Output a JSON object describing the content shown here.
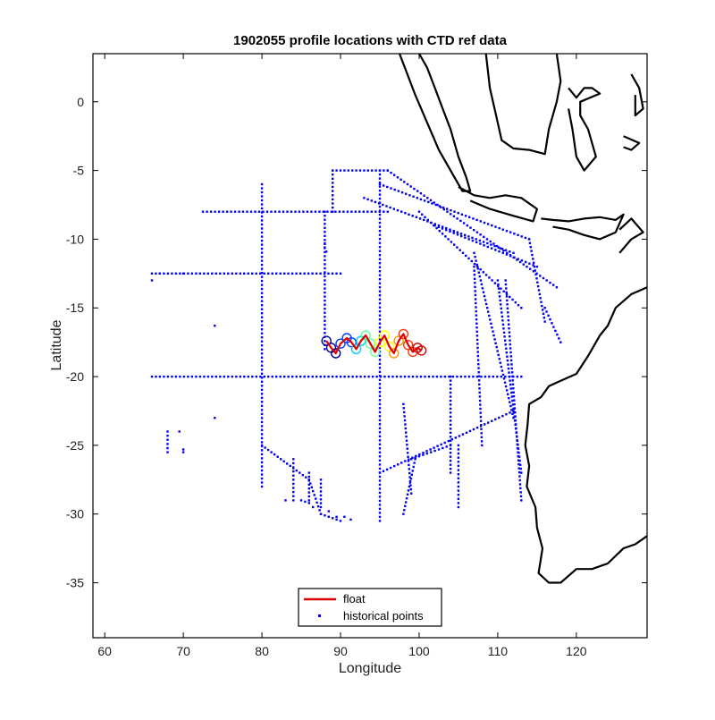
{
  "chart_data": {
    "type": "scatter",
    "title": "1902055 profile locations with CTD ref data",
    "xlabel": "Longitude",
    "ylabel": "Latitude",
    "xlim": [
      58.5,
      129
    ],
    "ylim": [
      -39,
      3.5
    ],
    "x_ticks": [
      60,
      70,
      80,
      90,
      100,
      110,
      120
    ],
    "y_ticks": [
      0,
      -5,
      -10,
      -15,
      -20,
      -25,
      -30,
      -35
    ],
    "grid": false,
    "legend_position": "bottom-center",
    "legend": [
      {
        "label": "float",
        "color": "#dd0000",
        "marker": "line"
      },
      {
        "label": "historical points",
        "color": "#0000ee",
        "marker": "dot"
      }
    ],
    "series": [
      {
        "name": "float",
        "color": "#dd0000",
        "x": [
          88.2,
          88.8,
          89.4,
          90.0,
          90.8,
          91.4,
          92.0,
          92.6,
          93.2,
          93.8,
          94.4,
          95.0,
          95.6,
          96.2,
          96.8,
          97.4,
          98.0,
          98.6,
          99.2,
          99.8,
          100.3
        ],
        "y": [
          -17.4,
          -17.9,
          -18.3,
          -17.6,
          -17.2,
          -17.5,
          -18.0,
          -17.4,
          -17.0,
          -17.6,
          -18.2,
          -17.5,
          -17.0,
          -17.8,
          -18.3,
          -17.4,
          -16.9,
          -17.7,
          -18.2,
          -17.9,
          -18.1
        ]
      },
      {
        "name": "historical points",
        "color": "#0000ee",
        "segments": [
          {
            "from": [
              66,
              -20
            ],
            "to": [
              113,
              -20
            ]
          },
          {
            "from": [
              72.5,
              -8
            ],
            "to": [
              96,
              -8
            ]
          },
          {
            "from": [
              66,
              -12.5
            ],
            "to": [
              90,
              -12.5
            ]
          },
          {
            "from": [
              80,
              -6
            ],
            "to": [
              80,
              -28
            ]
          },
          {
            "from": [
              95,
              -5
            ],
            "to": [
              95,
              -30.5
            ]
          },
          {
            "from": [
              88,
              -8
            ],
            "to": [
              88,
              -18
            ]
          },
          {
            "from": [
              89,
              -5
            ],
            "to": [
              96,
              -5
            ]
          },
          {
            "from": [
              89,
              -5
            ],
            "to": [
              89,
              -8
            ]
          },
          {
            "from": [
              96,
              -5
            ],
            "to": [
              117.5,
              -13.5
            ]
          },
          {
            "from": [
              95,
              -6
            ],
            "to": [
              114,
              -10
            ]
          },
          {
            "from": [
              93,
              -7
            ],
            "to": [
              112,
              -11
            ]
          },
          {
            "from": [
              102,
              -9
            ],
            "to": [
              115,
              -12
            ]
          },
          {
            "from": [
              100,
              -8
            ],
            "to": [
              113,
              -15
            ]
          },
          {
            "from": [
              107,
              -11
            ],
            "to": [
              112,
              -23
            ]
          },
          {
            "from": [
              107,
              -12
            ],
            "to": [
              108,
              -25
            ]
          },
          {
            "from": [
              110,
              -13
            ],
            "to": [
              113,
              -27
            ]
          },
          {
            "from": [
              111,
              -13
            ],
            "to": [
              113,
              -29
            ]
          },
          {
            "from": [
              114,
              -10
            ],
            "to": [
              116,
              -16
            ]
          },
          {
            "from": [
              116,
              -15
            ],
            "to": [
              118,
              -17.5
            ]
          },
          {
            "from": [
              112,
              -22.5
            ],
            "to": [
              95,
              -27
            ]
          },
          {
            "from": [
              104,
              -25
            ],
            "to": [
              99,
              -26
            ]
          },
          {
            "from": [
              99.5,
              -26
            ],
            "to": [
              98,
              -30
            ]
          },
          {
            "from": [
              105,
              -25
            ],
            "to": [
              105,
              -29.5
            ]
          },
          {
            "from": [
              98,
              -22
            ],
            "to": [
              99,
              -28.5
            ]
          },
          {
            "from": [
              104,
              -20
            ],
            "to": [
              104,
              -27
            ]
          },
          {
            "from": [
              80,
              -25
            ],
            "to": [
              86,
              -27.5
            ]
          },
          {
            "from": [
              86,
              -27.5
            ],
            "to": [
              87.5,
              -30
            ]
          },
          {
            "from": [
              87.5,
              -30
            ],
            "to": [
              90,
              -30.5
            ]
          },
          {
            "from": [
              84,
              -26
            ],
            "to": [
              84,
              -29
            ]
          },
          {
            "from": [
              86,
              -27
            ],
            "to": [
              86,
              -29
            ]
          },
          {
            "from": [
              87.5,
              -27.5
            ],
            "to": [
              87.5,
              -29.5
            ]
          },
          {
            "from": [
              85,
              -29
            ],
            "to": [
              86,
              -29.2
            ]
          },
          {
            "from": [
              68,
              -24
            ],
            "to": [
              68,
              -25.5
            ]
          }
        ],
        "points": [
          [
            66,
            -13
          ],
          [
            67,
            -12.5
          ],
          [
            70,
            -12.5
          ],
          [
            74,
            -16.3
          ],
          [
            74,
            -23
          ],
          [
            70,
            -25.5
          ],
          [
            70,
            -25.3
          ],
          [
            69.5,
            -24
          ],
          [
            88,
            -10.3
          ],
          [
            88,
            -10.6
          ],
          [
            88.2,
            -10.9
          ],
          [
            83,
            -29
          ],
          [
            86.5,
            -29.5
          ],
          [
            88.5,
            -29.8
          ],
          [
            89.5,
            -30.2
          ],
          [
            90.5,
            -30.2
          ],
          [
            91.3,
            -30.4
          ]
        ]
      }
    ]
  },
  "annotations": {
    "coastline": "black landmass outlines (Indonesia, Australia)",
    "float_track_colors": [
      "#000088",
      "#0044ff",
      "#00ccff",
      "#66ff99",
      "#ffff00",
      "#ff9900",
      "#ff3300",
      "#cc0000"
    ]
  }
}
